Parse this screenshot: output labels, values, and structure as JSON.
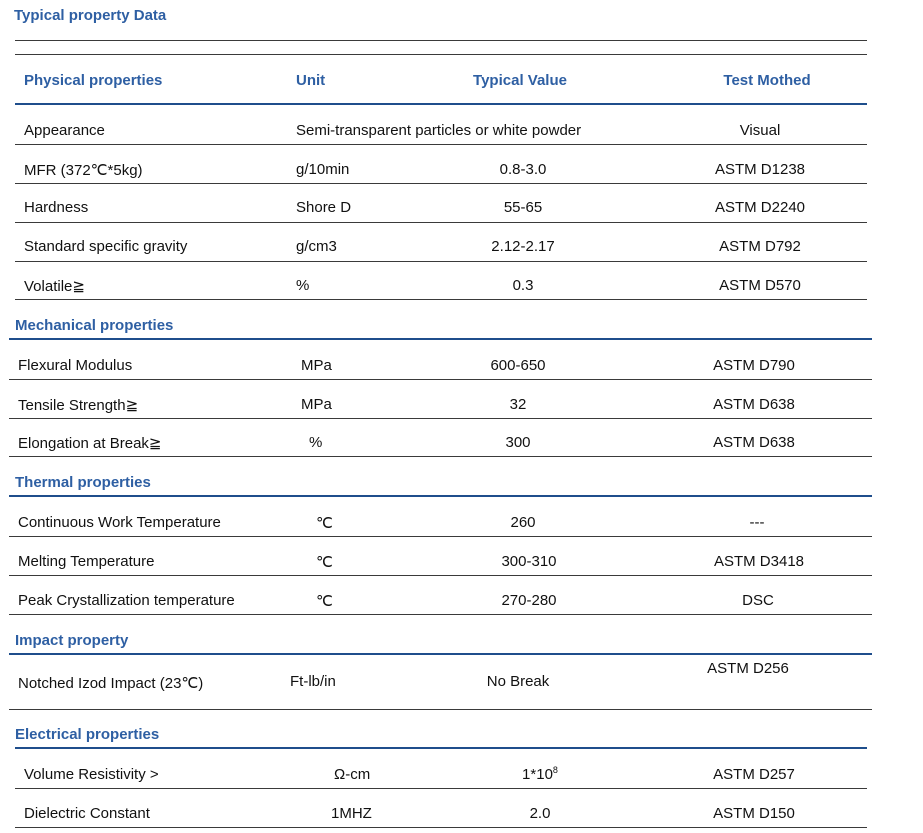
{
  "title": "Typical property Data",
  "header": {
    "col1": "Physical properties",
    "col2": "Unit",
    "col3": "Typical Value",
    "col4": "Test Mothed"
  },
  "physical": [
    {
      "name": "Appearance",
      "value_span": "Semi-transparent particles or white powder",
      "method": "Visual"
    },
    {
      "name": "MFR (372℃*5kg)",
      "unit": "g/10min",
      "value": "0.8-3.0",
      "method": "ASTM D1238"
    },
    {
      "name": "Hardness",
      "unit": "Shore D",
      "value": "55-65",
      "method": "ASTM D2240"
    },
    {
      "name": "Standard specific gravity",
      "unit": "g/cm3",
      "value": "2.12-2.17",
      "method": "ASTM D792"
    },
    {
      "name": "Volatile≧",
      "unit": "%",
      "value": "0.3",
      "method": "ASTM D570"
    }
  ],
  "mechanical": {
    "title": "Mechanical properties",
    "rows": [
      {
        "name": "Flexural Modulus",
        "unit": "MPa",
        "value": "600-650",
        "method": "ASTM D790"
      },
      {
        "name": "Tensile Strength≧",
        "unit": "MPa",
        "value": "32",
        "method": "ASTM D638"
      },
      {
        "name": "Elongation at Break≧",
        "unit": "%",
        "value": "300",
        "method": "ASTM D638"
      }
    ]
  },
  "thermal": {
    "title": "Thermal properties",
    "rows": [
      {
        "name": "Continuous Work Temperature",
        "unit": "℃",
        "value": "260",
        "method": "---"
      },
      {
        "name": "Melting Temperature",
        "unit": "℃",
        "value": "300-310",
        "method": "ASTM D3418"
      },
      {
        "name": "Peak Crystallization temperature",
        "unit": "℃",
        "value": "270-280",
        "method": "DSC"
      }
    ]
  },
  "impact": {
    "title": "Impact property",
    "rows": [
      {
        "name": "Notched Izod Impact (23℃)",
        "unit": "Ft-lb/in",
        "value": "No Break",
        "method": "ASTM D256"
      }
    ]
  },
  "electrical": {
    "title": "Electrical properties",
    "rows": [
      {
        "name": "Volume Resistivity >",
        "unit": "Ω-cm",
        "value": "1*10",
        "value_exp": "8",
        "method": "ASTM D257"
      },
      {
        "name": "Dielectric Constant",
        "unit": "1MHZ",
        "value": "2.0",
        "method": "ASTM D150"
      }
    ]
  }
}
